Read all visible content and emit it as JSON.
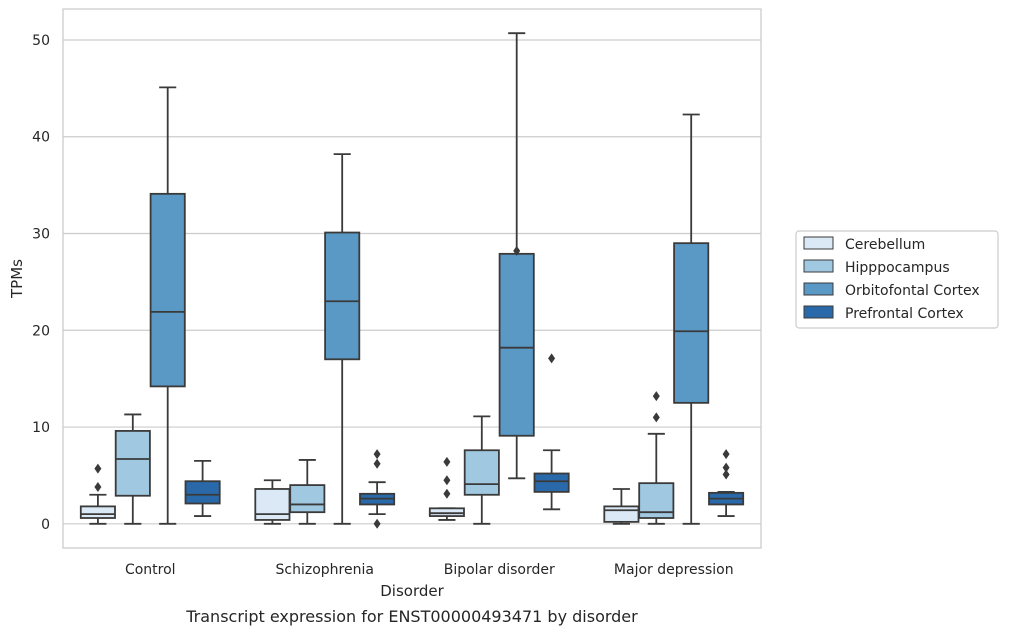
{
  "caption": "Transcript expression for ENST00000493471 by disorder",
  "chart_data": {
    "type": "box",
    "xlabel": "Disorder",
    "ylabel": "TPMs",
    "ylim": [
      -2.5,
      53.2
    ],
    "yticks": [
      0,
      10,
      20,
      30,
      40,
      50
    ],
    "grid": true,
    "legend_position": "right",
    "categories": [
      "Control",
      "Schizophrenia",
      "Bipolar disorder",
      "Major depression"
    ],
    "series": [
      {
        "name": "Cerebellum",
        "color": "#dbe9f6",
        "boxes": [
          {
            "whisker_low": 0.0,
            "q1": 0.6,
            "median": 1.0,
            "q3": 1.8,
            "whisker_high": 3.0,
            "outliers": [
              3.8,
              5.7
            ]
          },
          {
            "whisker_low": 0.0,
            "q1": 0.4,
            "median": 1.0,
            "q3": 3.6,
            "whisker_high": 4.5,
            "outliers": []
          },
          {
            "whisker_low": 0.4,
            "q1": 0.8,
            "median": 1.1,
            "q3": 1.6,
            "whisker_high": 1.6,
            "outliers": [
              3.1,
              4.5,
              6.4
            ]
          },
          {
            "whisker_low": 0.0,
            "q1": 0.2,
            "median": 1.4,
            "q3": 1.8,
            "whisker_high": 3.6,
            "outliers": []
          }
        ]
      },
      {
        "name": "Hipppocampus",
        "color": "#a0c9e1",
        "boxes": [
          {
            "whisker_low": 0.0,
            "q1": 2.9,
            "median": 6.7,
            "q3": 9.6,
            "whisker_high": 11.3,
            "outliers": []
          },
          {
            "whisker_low": 0.0,
            "q1": 1.2,
            "median": 2.0,
            "q3": 4.0,
            "whisker_high": 6.6,
            "outliers": []
          },
          {
            "whisker_low": 0.0,
            "q1": 3.0,
            "median": 4.1,
            "q3": 7.6,
            "whisker_high": 11.1,
            "outliers": []
          },
          {
            "whisker_low": 0.0,
            "q1": 0.6,
            "median": 1.2,
            "q3": 4.2,
            "whisker_high": 9.3,
            "outliers": [
              11.0,
              13.2
            ]
          }
        ]
      },
      {
        "name": "Orbitofontal Cortex",
        "color": "#5a98c5",
        "boxes": [
          {
            "whisker_low": 0.0,
            "q1": 14.2,
            "median": 21.9,
            "q3": 34.1,
            "whisker_high": 45.1,
            "outliers": []
          },
          {
            "whisker_low": 0.0,
            "q1": 17.0,
            "median": 23.0,
            "q3": 30.1,
            "whisker_high": 38.2,
            "outliers": []
          },
          {
            "whisker_low": 4.7,
            "q1": 9.1,
            "median": 18.2,
            "q3": 27.9,
            "whisker_high": 50.7,
            "outliers": [
              28.2
            ]
          },
          {
            "whisker_low": 0.0,
            "q1": 12.5,
            "median": 19.9,
            "q3": 29.0,
            "whisker_high": 42.3,
            "outliers": []
          }
        ]
      },
      {
        "name": "Prefrontal Cortex",
        "color": "#2a69a9",
        "boxes": [
          {
            "whisker_low": 0.8,
            "q1": 2.1,
            "median": 3.0,
            "q3": 4.4,
            "whisker_high": 6.5,
            "outliers": []
          },
          {
            "whisker_low": 1.0,
            "q1": 2.0,
            "median": 2.6,
            "q3": 3.1,
            "whisker_high": 4.3,
            "outliers": [
              0.0,
              6.2,
              7.2
            ]
          },
          {
            "whisker_low": 1.5,
            "q1": 3.3,
            "median": 4.4,
            "q3": 5.2,
            "whisker_high": 7.6,
            "outliers": [
              17.1
            ]
          },
          {
            "whisker_low": 0.8,
            "q1": 2.0,
            "median": 2.6,
            "q3": 3.2,
            "whisker_high": 3.3,
            "outliers": [
              5.1,
              5.8,
              7.2
            ]
          }
        ]
      }
    ]
  }
}
